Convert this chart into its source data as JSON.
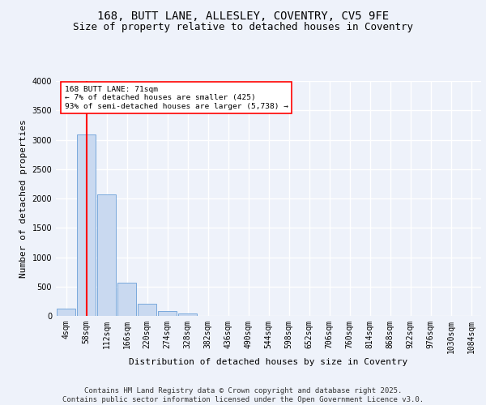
{
  "title_line1": "168, BUTT LANE, ALLESLEY, COVENTRY, CV5 9FE",
  "title_line2": "Size of property relative to detached houses in Coventry",
  "xlabel": "Distribution of detached houses by size in Coventry",
  "ylabel": "Number of detached properties",
  "bin_labels": [
    "4sqm",
    "58sqm",
    "112sqm",
    "166sqm",
    "220sqm",
    "274sqm",
    "328sqm",
    "382sqm",
    "436sqm",
    "490sqm",
    "544sqm",
    "598sqm",
    "652sqm",
    "706sqm",
    "760sqm",
    "814sqm",
    "868sqm",
    "922sqm",
    "976sqm",
    "1030sqm",
    "1084sqm"
  ],
  "bar_values": [
    130,
    3090,
    2070,
    560,
    210,
    80,
    45,
    0,
    0,
    0,
    0,
    0,
    0,
    0,
    0,
    0,
    0,
    0,
    0,
    0,
    0
  ],
  "bar_color": "#c9d9f0",
  "bar_edge_color": "#6a9fd8",
  "vline_x": 1,
  "vline_color": "red",
  "annotation_text": "168 BUTT LANE: 71sqm\n← 7% of detached houses are smaller (425)\n93% of semi-detached houses are larger (5,738) →",
  "annotation_box_color": "white",
  "annotation_box_edge": "red",
  "ylim": [
    0,
    4000
  ],
  "yticks": [
    0,
    500,
    1000,
    1500,
    2000,
    2500,
    3000,
    3500,
    4000
  ],
  "footer_text": "Contains HM Land Registry data © Crown copyright and database right 2025.\nContains public sector information licensed under the Open Government Licence v3.0.",
  "bg_color": "#eef2fa",
  "plot_bg_color": "#eef2fa",
  "grid_color": "#ffffff",
  "title_fontsize": 10,
  "subtitle_fontsize": 9,
  "axis_label_fontsize": 8,
  "tick_fontsize": 7,
  "footer_fontsize": 6.5
}
